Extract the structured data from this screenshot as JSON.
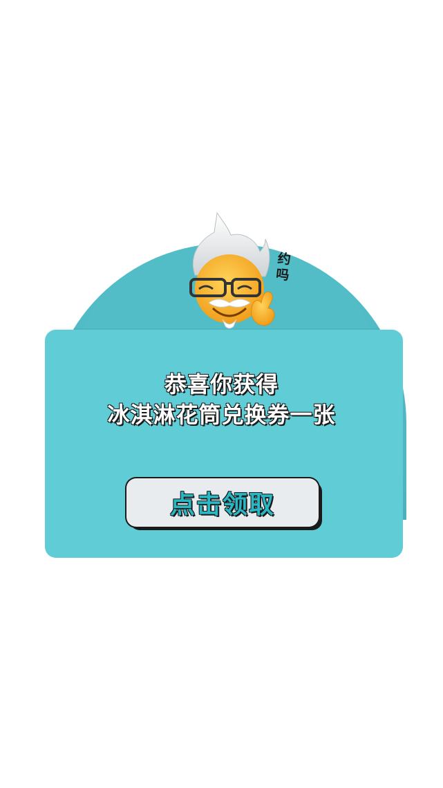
{
  "mascot": {
    "bubble_text": "约吗",
    "icon": "mascot-character-icon"
  },
  "reward": {
    "line1": "恭喜你获得",
    "line2": "冰淇淋花筒兑换券一张"
  },
  "claim_button": {
    "label": "点击领取"
  },
  "colors": {
    "dome": "#52bcc7",
    "card": "#5fccd6",
    "button_bg": "#e9ecef",
    "button_text": "#2ab7c4",
    "outline": "#1a1a1a"
  }
}
